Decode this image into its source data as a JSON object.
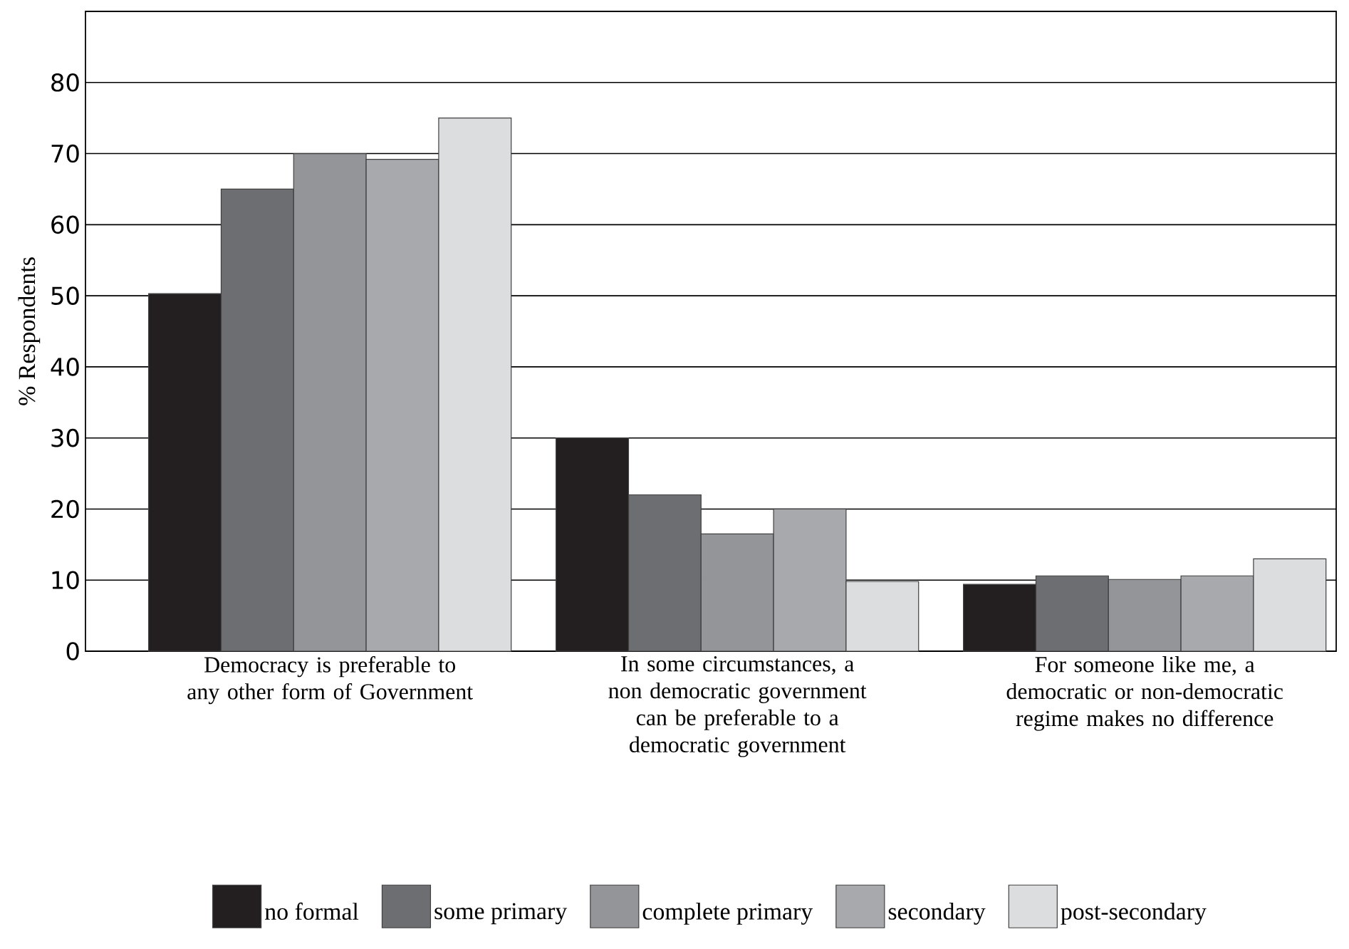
{
  "chart_data": {
    "type": "bar",
    "ylabel": "% Respondents",
    "categories": [
      "Democracy is preferable to any other form of Government",
      "In some circumstances, a non democratic government can be preferable to a democratic government",
      "For someone like me, a democratic or non-democratic regime makes no difference"
    ],
    "series": [
      {
        "name": "no formal",
        "color": "#231f20",
        "values": [
          50.3,
          30,
          9.4
        ]
      },
      {
        "name": "some primary",
        "color": "#6d6e71",
        "values": [
          65,
          22,
          10.6
        ]
      },
      {
        "name": "complete primary",
        "color": "#939598",
        "values": [
          70,
          16.5,
          10.1
        ]
      },
      {
        "name": "secondary",
        "color": "#a7a9ac",
        "values": [
          69.2,
          20,
          10.6
        ]
      },
      {
        "name": "post-secondary",
        "color": "#dcdddf",
        "values": [
          75,
          9.8,
          13
        ]
      }
    ],
    "ylim": [
      0,
      90
    ],
    "yticks": [
      0,
      10,
      20,
      30,
      40,
      50,
      60,
      70,
      80
    ],
    "grid": "y",
    "legend": "bottom"
  }
}
